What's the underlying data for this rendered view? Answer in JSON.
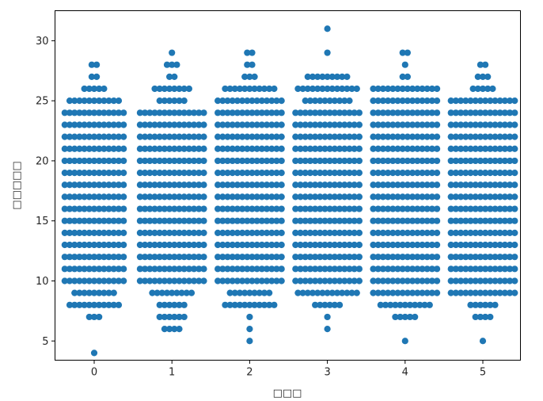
{
  "chart_data": {
    "type": "scatter",
    "subtype": "swarm",
    "xlabel": "□□□",
    "ylabel": "□□□□□",
    "categories": [
      "0",
      "1",
      "2",
      "3",
      "4",
      "5"
    ],
    "y_ticks": [
      "5",
      "10",
      "15",
      "20",
      "25",
      "30"
    ],
    "ylim": [
      3.4,
      32.5
    ],
    "grid": false,
    "marker_color": "#1f77b4",
    "series": [
      {
        "category": "0",
        "bins": [
          {
            "y": 4,
            "count": 1
          },
          {
            "y": 7,
            "count": 3
          },
          {
            "y": 8,
            "count": 11
          },
          {
            "y": 9,
            "count": 9
          },
          {
            "y": 10,
            "count": 13
          },
          {
            "y": 11,
            "count": 13
          },
          {
            "y": 12,
            "count": 13
          },
          {
            "y": 13,
            "count": 13
          },
          {
            "y": 14,
            "count": 13
          },
          {
            "y": 15,
            "count": 13
          },
          {
            "y": 16,
            "count": 13
          },
          {
            "y": 17,
            "count": 13
          },
          {
            "y": 18,
            "count": 13
          },
          {
            "y": 19,
            "count": 13
          },
          {
            "y": 20,
            "count": 13
          },
          {
            "y": 21,
            "count": 13
          },
          {
            "y": 22,
            "count": 13
          },
          {
            "y": 23,
            "count": 13
          },
          {
            "y": 24,
            "count": 13
          },
          {
            "y": 25,
            "count": 11
          },
          {
            "y": 26,
            "count": 5
          },
          {
            "y": 27,
            "count": 2
          },
          {
            "y": 28,
            "count": 2
          }
        ]
      },
      {
        "category": "1",
        "bins": [
          {
            "y": 6,
            "count": 4
          },
          {
            "y": 7,
            "count": 6
          },
          {
            "y": 8,
            "count": 6
          },
          {
            "y": 9,
            "count": 9
          },
          {
            "y": 10,
            "count": 14
          },
          {
            "y": 11,
            "count": 14
          },
          {
            "y": 12,
            "count": 14
          },
          {
            "y": 13,
            "count": 14
          },
          {
            "y": 14,
            "count": 14
          },
          {
            "y": 15,
            "count": 14
          },
          {
            "y": 16,
            "count": 14
          },
          {
            "y": 17,
            "count": 14
          },
          {
            "y": 18,
            "count": 14
          },
          {
            "y": 19,
            "count": 14
          },
          {
            "y": 20,
            "count": 14
          },
          {
            "y": 21,
            "count": 14
          },
          {
            "y": 22,
            "count": 14
          },
          {
            "y": 23,
            "count": 14
          },
          {
            "y": 24,
            "count": 14
          },
          {
            "y": 25,
            "count": 6
          },
          {
            "y": 26,
            "count": 8
          },
          {
            "y": 27,
            "count": 2
          },
          {
            "y": 28,
            "count": 3
          },
          {
            "y": 29,
            "count": 1
          }
        ]
      },
      {
        "category": "2",
        "bins": [
          {
            "y": 5,
            "count": 1
          },
          {
            "y": 6,
            "count": 1
          },
          {
            "y": 7,
            "count": 1
          },
          {
            "y": 8,
            "count": 11
          },
          {
            "y": 9,
            "count": 9
          },
          {
            "y": 10,
            "count": 14
          },
          {
            "y": 11,
            "count": 14
          },
          {
            "y": 12,
            "count": 14
          },
          {
            "y": 13,
            "count": 14
          },
          {
            "y": 14,
            "count": 14
          },
          {
            "y": 15,
            "count": 14
          },
          {
            "y": 16,
            "count": 14
          },
          {
            "y": 17,
            "count": 14
          },
          {
            "y": 18,
            "count": 14
          },
          {
            "y": 19,
            "count": 14
          },
          {
            "y": 20,
            "count": 14
          },
          {
            "y": 21,
            "count": 14
          },
          {
            "y": 22,
            "count": 14
          },
          {
            "y": 23,
            "count": 14
          },
          {
            "y": 24,
            "count": 14
          },
          {
            "y": 25,
            "count": 14
          },
          {
            "y": 26,
            "count": 11
          },
          {
            "y": 27,
            "count": 3
          },
          {
            "y": 28,
            "count": 2
          },
          {
            "y": 29,
            "count": 2
          }
        ]
      },
      {
        "category": "3",
        "bins": [
          {
            "y": 6,
            "count": 1
          },
          {
            "y": 7,
            "count": 1
          },
          {
            "y": 8,
            "count": 6
          },
          {
            "y": 9,
            "count": 13
          },
          {
            "y": 10,
            "count": 14
          },
          {
            "y": 11,
            "count": 14
          },
          {
            "y": 12,
            "count": 14
          },
          {
            "y": 13,
            "count": 14
          },
          {
            "y": 14,
            "count": 14
          },
          {
            "y": 15,
            "count": 14
          },
          {
            "y": 16,
            "count": 14
          },
          {
            "y": 17,
            "count": 14
          },
          {
            "y": 18,
            "count": 14
          },
          {
            "y": 19,
            "count": 14
          },
          {
            "y": 20,
            "count": 14
          },
          {
            "y": 21,
            "count": 14
          },
          {
            "y": 22,
            "count": 14
          },
          {
            "y": 23,
            "count": 14
          },
          {
            "y": 24,
            "count": 14
          },
          {
            "y": 25,
            "count": 10
          },
          {
            "y": 26,
            "count": 13
          },
          {
            "y": 27,
            "count": 9
          },
          {
            "y": 29,
            "count": 1
          },
          {
            "y": 31,
            "count": 1
          }
        ]
      },
      {
        "category": "4",
        "bins": [
          {
            "y": 5,
            "count": 1
          },
          {
            "y": 7,
            "count": 5
          },
          {
            "y": 8,
            "count": 11
          },
          {
            "y": 9,
            "count": 14
          },
          {
            "y": 10,
            "count": 14
          },
          {
            "y": 11,
            "count": 14
          },
          {
            "y": 12,
            "count": 14
          },
          {
            "y": 13,
            "count": 14
          },
          {
            "y": 14,
            "count": 14
          },
          {
            "y": 15,
            "count": 14
          },
          {
            "y": 16,
            "count": 14
          },
          {
            "y": 17,
            "count": 14
          },
          {
            "y": 18,
            "count": 14
          },
          {
            "y": 19,
            "count": 14
          },
          {
            "y": 20,
            "count": 14
          },
          {
            "y": 21,
            "count": 14
          },
          {
            "y": 22,
            "count": 14
          },
          {
            "y": 23,
            "count": 14
          },
          {
            "y": 24,
            "count": 14
          },
          {
            "y": 25,
            "count": 14
          },
          {
            "y": 26,
            "count": 14
          },
          {
            "y": 27,
            "count": 2
          },
          {
            "y": 28,
            "count": 1
          },
          {
            "y": 29,
            "count": 2
          }
        ]
      },
      {
        "category": "5",
        "bins": [
          {
            "y": 5,
            "count": 1
          },
          {
            "y": 7,
            "count": 4
          },
          {
            "y": 8,
            "count": 6
          },
          {
            "y": 9,
            "count": 14
          },
          {
            "y": 10,
            "count": 14
          },
          {
            "y": 11,
            "count": 14
          },
          {
            "y": 12,
            "count": 14
          },
          {
            "y": 13,
            "count": 14
          },
          {
            "y": 14,
            "count": 14
          },
          {
            "y": 15,
            "count": 14
          },
          {
            "y": 16,
            "count": 14
          },
          {
            "y": 17,
            "count": 14
          },
          {
            "y": 18,
            "count": 14
          },
          {
            "y": 19,
            "count": 14
          },
          {
            "y": 20,
            "count": 14
          },
          {
            "y": 21,
            "count": 14
          },
          {
            "y": 22,
            "count": 14
          },
          {
            "y": 23,
            "count": 14
          },
          {
            "y": 24,
            "count": 14
          },
          {
            "y": 25,
            "count": 14
          },
          {
            "y": 26,
            "count": 5
          },
          {
            "y": 27,
            "count": 3
          },
          {
            "y": 28,
            "count": 2
          }
        ]
      }
    ]
  }
}
